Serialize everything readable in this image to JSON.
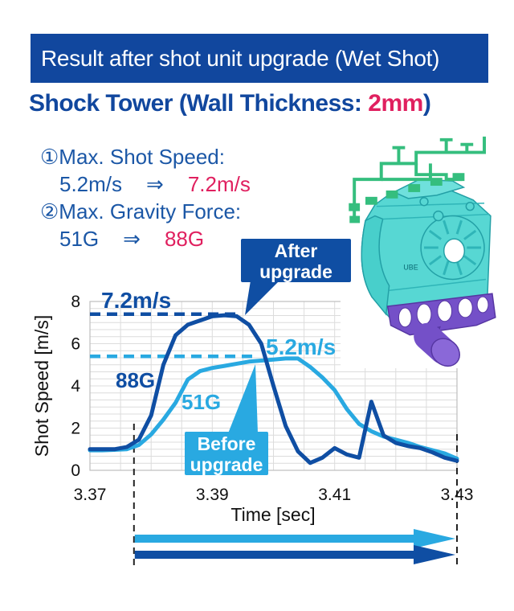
{
  "banner": {
    "title": "Result after shot unit upgrade (Wet Shot)"
  },
  "heading": {
    "prefix": "Shock Tower (Wall Thickness: ",
    "highlight": "2mm",
    "suffix": ")"
  },
  "bullets": {
    "item1_label": "①Max. Shot Speed:",
    "item1_from": "5.2m/s",
    "item1_arrow": "⇒",
    "item1_to": "7.2m/s",
    "item2_label": "②Max. Gravity Force:",
    "item2_from": "51G",
    "item2_arrow": "⇒",
    "item2_to": "88G"
  },
  "model": {
    "badge": "UBE"
  },
  "callouts": {
    "after": {
      "line1": "After",
      "line2": "upgrade"
    },
    "before": {
      "line1": "Before",
      "line2": "upgrade"
    }
  },
  "chart_data": {
    "type": "line",
    "title": "",
    "xlabel": "Time [sec]",
    "ylabel": "Shot Speed [m/s]",
    "xlim": [
      3.37,
      3.43
    ],
    "ylim": [
      0,
      8
    ],
    "xticks": [
      3.37,
      3.39,
      3.41,
      3.43
    ],
    "xtick_labels": [
      "3.37",
      "3.39",
      "3.41",
      "3.43"
    ],
    "yticks": [
      0,
      2,
      4,
      6,
      8
    ],
    "grid": true,
    "legend_position": "none",
    "x_start": 3.37,
    "x_step": 0.002,
    "series": [
      {
        "name": "After upgrade",
        "color": "#0F4EA3",
        "max_label": "7.2m/s",
        "g_label": "88G",
        "values": [
          1.0,
          1.0,
          1.0,
          1.1,
          1.45,
          2.6,
          5.0,
          6.4,
          6.9,
          7.1,
          7.3,
          7.35,
          7.3,
          6.9,
          6.0,
          4.0,
          2.1,
          0.9,
          0.35,
          0.6,
          1.05,
          0.75,
          0.6,
          3.25,
          1.65,
          1.3,
          1.15,
          1.05,
          0.85,
          0.6,
          0.45
        ]
      },
      {
        "name": "Before upgrade",
        "color": "#29A9E1",
        "max_label": "5.2m/s",
        "g_label": "51G",
        "values": [
          0.95,
          0.95,
          0.97,
          1.0,
          1.2,
          1.7,
          2.4,
          3.2,
          4.3,
          4.7,
          4.85,
          4.95,
          5.05,
          5.15,
          5.2,
          5.25,
          5.3,
          5.3,
          4.9,
          4.4,
          3.8,
          2.9,
          2.2,
          1.85,
          1.6,
          1.45,
          1.3,
          1.1,
          0.95,
          0.8,
          0.55
        ]
      }
    ],
    "ref_lines": [
      {
        "label": "7.2m/s",
        "y": 7.4,
        "x_end": 3.3947,
        "color": "#0F4EA3"
      },
      {
        "label": "5.2m/s",
        "y": 5.4,
        "x_end": 3.397,
        "color": "#29A9E1"
      }
    ],
    "highlight_window": {
      "from": 3.3772,
      "to": 3.43
    },
    "duration_arrows": [
      {
        "name": "before-upgrade-range-arrow",
        "color": "#29A9E1"
      },
      {
        "name": "after-upgrade-range-arrow",
        "color": "#0F4EA3"
      }
    ],
    "annotations": {
      "after_max": "7.2m/s",
      "before_max": "5.2m/s",
      "after_g": "88G",
      "before_g": "51G"
    }
  },
  "colors": {
    "navy": "#11479E",
    "curve_dark": "#0F4EA3",
    "curve_light": "#29A9E1",
    "pink": "#E0205F",
    "grid": "#DCDCDC",
    "model_green": "#35BE7E",
    "model_teal": "#57D7D3",
    "model_purple": "#7450C8"
  }
}
